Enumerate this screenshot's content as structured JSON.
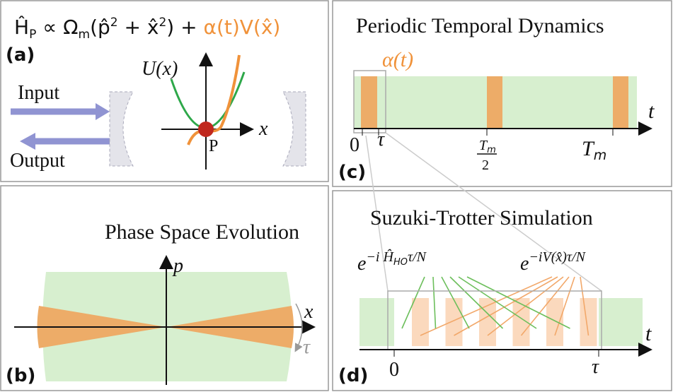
{
  "panel_a": {
    "label": "(a)",
    "formula": [
      "Ĥ",
      "P",
      " ∝ Ω",
      "m",
      "(p̂",
      "2",
      " + x̂",
      "2",
      ") + ",
      "α(t)V(x̂)"
    ],
    "potential_label": "U(x)",
    "x_axis_label": "x",
    "point_label": "P",
    "input_label": "Input",
    "output_label": "Output"
  },
  "panel_b": {
    "label": "(b)",
    "title": "Phase Space Evolution",
    "p_axis_label": "p",
    "x_axis_label": "x",
    "angle_label": "τ"
  },
  "panel_c": {
    "label": "(c)",
    "title": "Periodic Temporal Dynamics",
    "signal_label": "α(t)",
    "t_axis_label": "t",
    "tick_zero": "0",
    "tick_tau": "τ",
    "tick_half_num": "T",
    "tick_half_sub": "m",
    "tick_half_den": "2",
    "tick_period": "T",
    "tick_period_sub": "m"
  },
  "panel_d": {
    "label": "(d)",
    "title": "Suzuki-Trotter Simulation",
    "ho_formula": [
      "e",
      "−i Ĥ",
      "HO",
      "τ/N"
    ],
    "v_formula": [
      "e",
      "−iV(x̂)τ/N"
    ],
    "t_axis_label": "t",
    "tick_zero": "0",
    "tick_tau": "τ"
  }
}
